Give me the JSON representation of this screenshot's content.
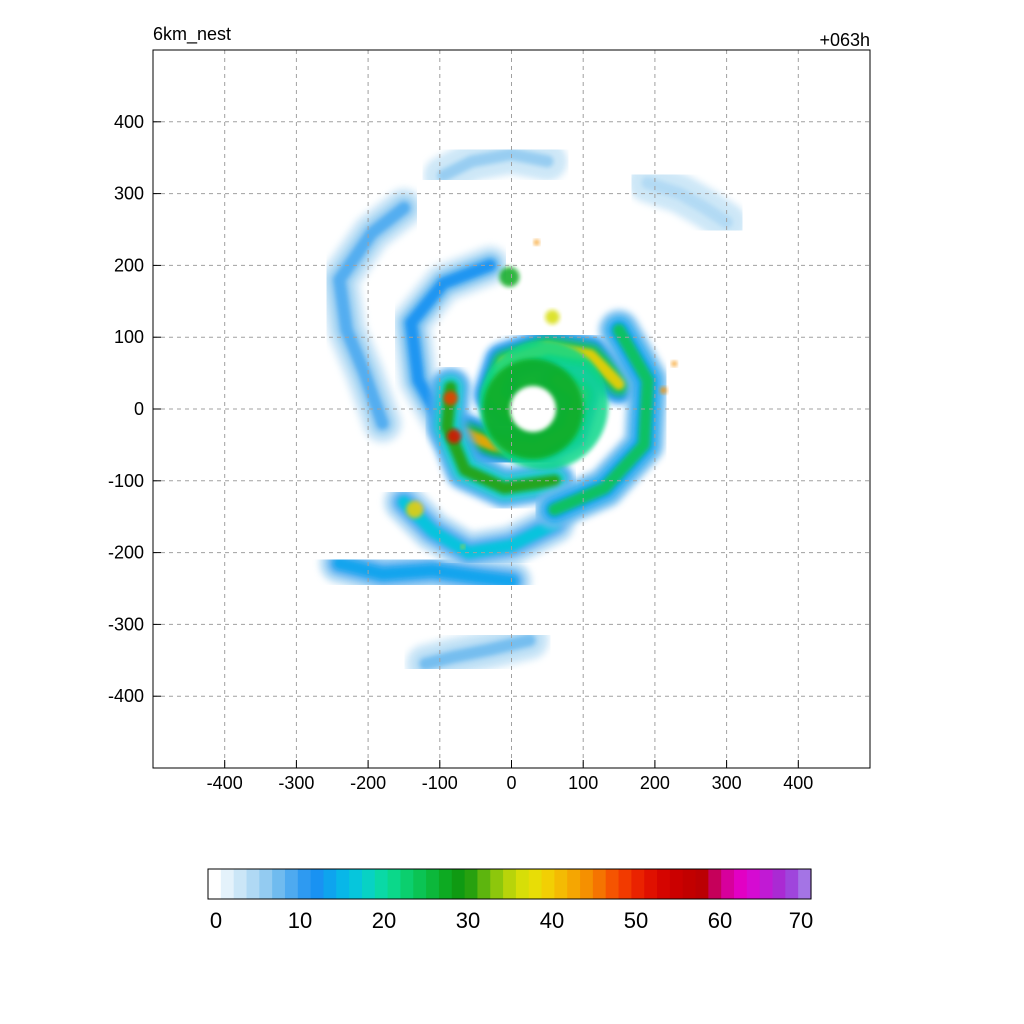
{
  "chart_data": {
    "type": "heatmap",
    "title_left": "6km_nest",
    "title_right": "+063h",
    "xlabel": "",
    "ylabel": "",
    "xlim": [
      -500,
      500
    ],
    "ylim": [
      -500,
      500
    ],
    "grid": true,
    "xticks": [
      {
        "value": -400,
        "label": "-400"
      },
      {
        "value": -300,
        "label": "-300"
      },
      {
        "value": -200,
        "label": "-200"
      },
      {
        "value": -100,
        "label": "-100"
      },
      {
        "value": 0,
        "label": "0"
      },
      {
        "value": 100,
        "label": "100"
      },
      {
        "value": 200,
        "label": "200"
      },
      {
        "value": 300,
        "label": "300"
      },
      {
        "value": 400,
        "label": "400"
      }
    ],
    "yticks": [
      {
        "value": 400,
        "label": "400"
      },
      {
        "value": 300,
        "label": "300"
      },
      {
        "value": 200,
        "label": "200"
      },
      {
        "value": 100,
        "label": "100"
      },
      {
        "value": 0,
        "label": "0"
      },
      {
        "value": -100,
        "label": "-100"
      },
      {
        "value": -200,
        "label": "-200"
      },
      {
        "value": -300,
        "label": "-300"
      },
      {
        "value": -400,
        "label": "-400"
      }
    ],
    "colorbar": {
      "min": 0,
      "max": 70,
      "tick_labels": [
        "0",
        "10",
        "20",
        "30",
        "40",
        "50",
        "60",
        "70"
      ],
      "tick_values": [
        0,
        10,
        20,
        30,
        40,
        50,
        60,
        70
      ],
      "colors": [
        "#ffffff",
        "#e4f2fb",
        "#cbe6f7",
        "#b0d9f4",
        "#93cbf1",
        "#70bbef",
        "#4eaaf0",
        "#2e9af1",
        "#1992f2",
        "#0ea4ee",
        "#08b7e8",
        "#06c6dc",
        "#08d2c4",
        "#0ad9a6",
        "#0bd88a",
        "#0bcf6e",
        "#0bc454",
        "#0cb83b",
        "#0daa22",
        "#0f9a12",
        "#27a10f",
        "#5db50e",
        "#8dc70c",
        "#b8d40a",
        "#d7de08",
        "#e8dd06",
        "#f2cf04",
        "#f4bb03",
        "#f5a602",
        "#f59001",
        "#f57401",
        "#f55401",
        "#f23a00",
        "#ea2200",
        "#e01000",
        "#d50400",
        "#cb0000",
        "#c20000",
        "#bb0003",
        "#c6005a",
        "#d7009c",
        "#e200c4",
        "#d50bd2",
        "#c11ad4",
        "#aa2ad3",
        "#9f45dc",
        "#a474e5"
      ]
    },
    "cyclone_center": {
      "x": 30,
      "y": 0
    },
    "eye_radius_km": 32,
    "bands": [
      {
        "name": "outer-rainband-north",
        "level": 6,
        "pts": [
          [
            -95,
            325
          ],
          [
            -55,
            345
          ],
          [
            0,
            355
          ],
          [
            50,
            345
          ]
        ]
      },
      {
        "name": "outer-rainband-east",
        "level": 5,
        "pts": [
          [
            190,
            315
          ],
          [
            235,
            300
          ],
          [
            270,
            280
          ],
          [
            300,
            260
          ]
        ]
      },
      {
        "name": "outer-rainband-south",
        "level": 7,
        "pts": [
          [
            -120,
            -355
          ],
          [
            -80,
            -345
          ],
          [
            -30,
            -335
          ],
          [
            25,
            -322
          ]
        ]
      },
      {
        "name": "outer-rainband-west",
        "level": 9,
        "pts": [
          [
            -150,
            280
          ],
          [
            -195,
            245
          ],
          [
            -240,
            180
          ],
          [
            -230,
            110
          ],
          [
            -205,
            50
          ],
          [
            -180,
            -20
          ]
        ]
      },
      {
        "name": "inner-spiral-west",
        "level": 12,
        "pts": [
          [
            -30,
            200
          ],
          [
            -95,
            175
          ],
          [
            -140,
            120
          ],
          [
            -130,
            40
          ],
          [
            -90,
            -30
          ],
          [
            -40,
            -60
          ]
        ]
      },
      {
        "name": "rainband-south",
        "level": 14,
        "pts": [
          [
            -240,
            -215
          ],
          [
            -180,
            -230
          ],
          [
            -110,
            -225
          ],
          [
            -40,
            -235
          ],
          [
            0,
            -240
          ]
        ]
      },
      {
        "name": "spiral-tail-southwest",
        "level": 16,
        "pts": [
          [
            -150,
            -130
          ],
          [
            -110,
            -170
          ],
          [
            -60,
            -200
          ],
          [
            0,
            -190
          ],
          [
            60,
            -160
          ]
        ]
      },
      {
        "name": "eyewall-north-arm",
        "level": 40,
        "pts": [
          [
            150,
            35
          ],
          [
            110,
            75
          ],
          [
            50,
            85
          ],
          [
            -10,
            65
          ],
          [
            -25,
            20
          ],
          [
            0,
            -5
          ]
        ]
      },
      {
        "name": "eyewall-south-arm",
        "level": 42,
        "pts": [
          [
            -65,
            -35
          ],
          [
            -25,
            -50
          ],
          [
            35,
            -55
          ],
          [
            80,
            -30
          ],
          [
            95,
            20
          ],
          [
            65,
            40
          ]
        ]
      },
      {
        "name": "spiral-band-west",
        "level": 30,
        "pts": [
          [
            -85,
            30
          ],
          [
            -90,
            -25
          ],
          [
            -65,
            -85
          ],
          [
            -10,
            -110
          ],
          [
            60,
            -100
          ]
        ]
      },
      {
        "name": "spiral-band-east",
        "level": 24,
        "pts": [
          [
            150,
            110
          ],
          [
            190,
            40
          ],
          [
            185,
            -50
          ],
          [
            130,
            -110
          ],
          [
            60,
            -140
          ]
        ]
      }
    ],
    "cells": [
      {
        "x": 45,
        "y": 5,
        "r": 90,
        "level": 22
      },
      {
        "x": 30,
        "y": 0,
        "r": 70,
        "level": 28
      },
      {
        "x": -3,
        "y": 184,
        "r": 14,
        "level": 28
      },
      {
        "x": 57,
        "y": 128,
        "r": 10,
        "level": 36
      },
      {
        "x": -85,
        "y": 15,
        "r": 10,
        "level": 48
      },
      {
        "x": -80,
        "y": -38,
        "r": 10,
        "level": 52
      },
      {
        "x": -135,
        "y": -140,
        "r": 12,
        "level": 40
      },
      {
        "x": 212,
        "y": 26,
        "r": 5,
        "level": 44
      },
      {
        "x": 227,
        "y": 63,
        "r": 4,
        "level": 44
      },
      {
        "x": 35,
        "y": 232,
        "r": 4,
        "level": 44
      },
      {
        "x": -68,
        "y": -192,
        "r": 3,
        "level": 36
      }
    ]
  }
}
